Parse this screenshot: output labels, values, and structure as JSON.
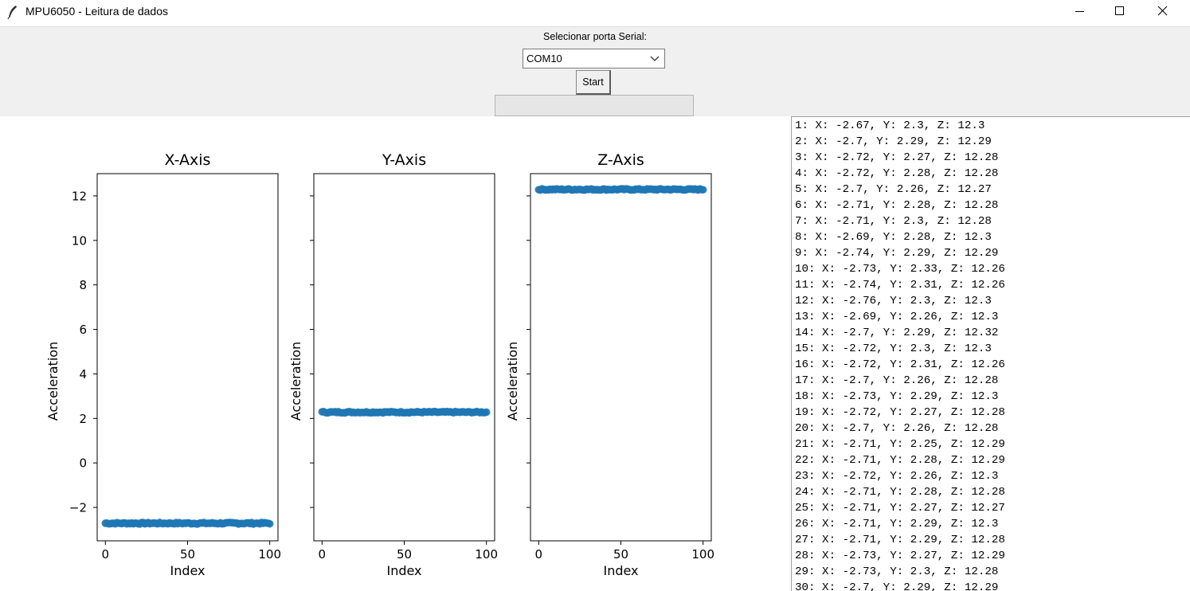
{
  "window": {
    "title": "MPU6050 - Leitura de dados",
    "icon": "feather-icon",
    "controls": [
      "minimize-icon",
      "maximize-icon",
      "close-icon"
    ]
  },
  "controls": {
    "serial_label": "Selecionar porta Serial:",
    "port_value": "COM10",
    "start_label": "Start",
    "status_text": ""
  },
  "colors": {
    "series": "#1f77b4",
    "background": "#f0f0f0"
  },
  "chart_data": [
    {
      "type": "scatter",
      "title": "X-Axis",
      "xlabel": "Index",
      "ylabel": "Acceleration",
      "xlim": [
        -5,
        105
      ],
      "ylim": [
        -3.5,
        13.0
      ],
      "xticks": [
        0,
        50,
        100
      ],
      "yticks": [
        -2,
        0,
        2,
        4,
        6,
        8,
        10,
        12
      ],
      "ytick_labels_visible": true,
      "base": -2.71,
      "jitter": 0.035
    },
    {
      "type": "scatter",
      "title": "Y-Axis",
      "xlabel": "Index",
      "ylabel": "Acceleration",
      "xlim": [
        -5,
        105
      ],
      "ylim": [
        -3.5,
        13.0
      ],
      "xticks": [
        0,
        50,
        100
      ],
      "yticks": [
        -2,
        0,
        2,
        4,
        6,
        8,
        10,
        12
      ],
      "ytick_labels_visible": false,
      "base": 2.28,
      "jitter": 0.03
    },
    {
      "type": "scatter",
      "title": "Z-Axis",
      "xlabel": "Index",
      "ylabel": "Acceleration",
      "xlim": [
        -5,
        105
      ],
      "ylim": [
        -3.5,
        13.0
      ],
      "xticks": [
        0,
        50,
        100
      ],
      "yticks": [
        -2,
        0,
        2,
        4,
        6,
        8,
        10,
        12
      ],
      "ytick_labels_visible": false,
      "base": 12.29,
      "jitter": 0.03
    }
  ],
  "log": [
    "1: X: -2.67, Y: 2.3, Z: 12.3",
    "2: X: -2.7, Y: 2.29, Z: 12.29",
    "3: X: -2.72, Y: 2.27, Z: 12.28",
    "4: X: -2.72, Y: 2.28, Z: 12.28",
    "5: X: -2.7, Y: 2.26, Z: 12.27",
    "6: X: -2.71, Y: 2.28, Z: 12.28",
    "7: X: -2.71, Y: 2.3, Z: 12.28",
    "8: X: -2.69, Y: 2.28, Z: 12.3",
    "9: X: -2.74, Y: 2.29, Z: 12.29",
    "10: X: -2.73, Y: 2.33, Z: 12.26",
    "11: X: -2.74, Y: 2.31, Z: 12.26",
    "12: X: -2.76, Y: 2.3, Z: 12.3",
    "13: X: -2.69, Y: 2.26, Z: 12.3",
    "14: X: -2.7, Y: 2.29, Z: 12.32",
    "15: X: -2.72, Y: 2.3, Z: 12.3",
    "16: X: -2.72, Y: 2.31, Z: 12.26",
    "17: X: -2.7, Y: 2.26, Z: 12.28",
    "18: X: -2.73, Y: 2.29, Z: 12.3",
    "19: X: -2.72, Y: 2.27, Z: 12.28",
    "20: X: -2.7, Y: 2.26, Z: 12.28",
    "21: X: -2.71, Y: 2.25, Z: 12.29",
    "22: X: -2.71, Y: 2.28, Z: 12.29",
    "23: X: -2.72, Y: 2.26, Z: 12.3",
    "24: X: -2.71, Y: 2.28, Z: 12.28",
    "25: X: -2.71, Y: 2.27, Z: 12.27",
    "26: X: -2.71, Y: 2.29, Z: 12.3",
    "27: X: -2.71, Y: 2.29, Z: 12.28",
    "28: X: -2.73, Y: 2.27, Z: 12.29",
    "29: X: -2.73, Y: 2.3, Z: 12.28",
    "30: X: -2.7, Y: 2.29, Z: 12.29"
  ]
}
